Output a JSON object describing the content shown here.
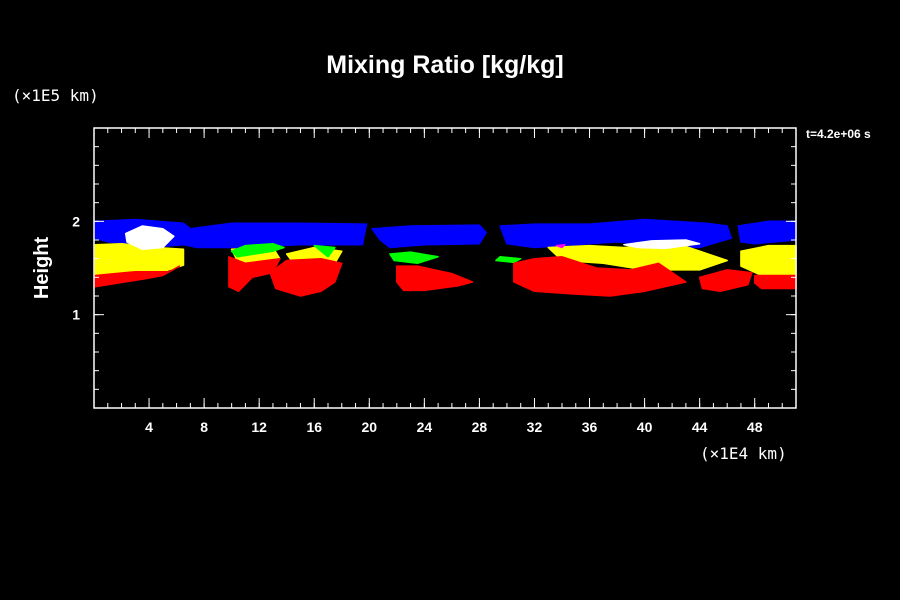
{
  "chart_data": {
    "type": "area",
    "title": "Mixing Ratio [kg/kg]",
    "ylabel": "Height",
    "xlabel": "",
    "x_unit": "(×1E4 km)",
    "y_unit": "(×1E5 km)",
    "time_label": "t=4.2e+06 s",
    "xlim": [
      0,
      51
    ],
    "ylim": [
      0,
      3
    ],
    "x_ticks": [
      4,
      8,
      12,
      16,
      20,
      24,
      28,
      32,
      36,
      40,
      44,
      48
    ],
    "y_ticks": [
      1,
      2
    ],
    "grid": false,
    "colors": {
      "background": "#000000",
      "axis": "#ffffff",
      "level_1": "#ff0000",
      "level_2": "#ffff00",
      "level_3": "#00ff00",
      "level_4": "#0000ff",
      "level_5": "#ffffff",
      "level_6": "#ff00ff"
    },
    "regions": [
      {
        "level": "level_4",
        "points": [
          [
            0.1,
            2.0
          ],
          [
            3.0,
            2.02
          ],
          [
            6.5,
            1.98
          ],
          [
            7.0,
            1.92
          ],
          [
            10.0,
            1.98
          ],
          [
            15.0,
            1.98
          ],
          [
            19.8,
            1.97
          ],
          [
            19.5,
            1.75
          ],
          [
            15.0,
            1.75
          ],
          [
            10.0,
            1.72
          ],
          [
            7.5,
            1.72
          ],
          [
            6.5,
            1.75
          ],
          [
            4.0,
            1.72
          ],
          [
            1.0,
            1.78
          ],
          [
            0.1,
            1.82
          ]
        ]
      },
      {
        "level": "level_4",
        "points": [
          [
            20.2,
            1.92
          ],
          [
            23.0,
            1.95
          ],
          [
            28.0,
            1.96
          ],
          [
            28.5,
            1.88
          ],
          [
            28.0,
            1.76
          ],
          [
            24.0,
            1.75
          ],
          [
            21.5,
            1.72
          ],
          [
            20.8,
            1.8
          ]
        ]
      },
      {
        "level": "level_4",
        "points": [
          [
            29.5,
            1.95
          ],
          [
            32.0,
            1.97
          ],
          [
            36.0,
            1.97
          ],
          [
            40.0,
            2.02
          ],
          [
            44.5,
            1.98
          ],
          [
            46.0,
            1.95
          ],
          [
            46.3,
            1.82
          ],
          [
            44.0,
            1.72
          ],
          [
            41.0,
            1.74
          ],
          [
            38.0,
            1.78
          ],
          [
            35.0,
            1.75
          ],
          [
            32.0,
            1.72
          ],
          [
            30.0,
            1.76
          ]
        ]
      },
      {
        "level": "level_4",
        "points": [
          [
            46.8,
            1.95
          ],
          [
            49.0,
            2.0
          ],
          [
            51.0,
            2.0
          ],
          [
            51.0,
            1.8
          ],
          [
            48.0,
            1.76
          ],
          [
            47.0,
            1.78
          ]
        ]
      },
      {
        "level": "level_2",
        "points": [
          [
            0.1,
            1.75
          ],
          [
            2.0,
            1.76
          ],
          [
            4.5,
            1.72
          ],
          [
            6.5,
            1.7
          ],
          [
            6.5,
            1.53
          ],
          [
            5.0,
            1.46
          ],
          [
            3.0,
            1.42
          ],
          [
            0.1,
            1.42
          ]
        ]
      },
      {
        "level": "level_2",
        "points": [
          [
            33.0,
            1.72
          ],
          [
            36.0,
            1.74
          ],
          [
            38.5,
            1.72
          ],
          [
            40.0,
            1.74
          ],
          [
            43.0,
            1.73
          ],
          [
            46.0,
            1.58
          ],
          [
            44.0,
            1.48
          ],
          [
            40.0,
            1.48
          ],
          [
            37.0,
            1.55
          ],
          [
            34.0,
            1.58
          ]
        ]
      },
      {
        "level": "level_2",
        "points": [
          [
            47.0,
            1.68
          ],
          [
            49.0,
            1.74
          ],
          [
            51.0,
            1.74
          ],
          [
            51.0,
            1.42
          ],
          [
            48.5,
            1.42
          ],
          [
            47.0,
            1.52
          ]
        ]
      },
      {
        "level": "level_2",
        "points": [
          [
            10.0,
            1.7
          ],
          [
            13.0,
            1.72
          ],
          [
            13.5,
            1.6
          ],
          [
            10.5,
            1.55
          ]
        ]
      },
      {
        "level": "level_2",
        "points": [
          [
            14.0,
            1.65
          ],
          [
            16.0,
            1.72
          ],
          [
            18.0,
            1.68
          ],
          [
            17.5,
            1.55
          ],
          [
            14.5,
            1.55
          ]
        ]
      },
      {
        "level": "level_3",
        "points": [
          [
            10.0,
            1.68
          ],
          [
            11.0,
            1.74
          ],
          [
            13.0,
            1.76
          ],
          [
            13.8,
            1.72
          ],
          [
            13.0,
            1.68
          ],
          [
            10.4,
            1.62
          ]
        ]
      },
      {
        "level": "level_3",
        "points": [
          [
            16.0,
            1.74
          ],
          [
            17.5,
            1.72
          ],
          [
            17.0,
            1.62
          ]
        ]
      },
      {
        "level": "level_3",
        "points": [
          [
            21.5,
            1.65
          ],
          [
            23.0,
            1.67
          ],
          [
            25.0,
            1.62
          ],
          [
            23.5,
            1.55
          ],
          [
            21.8,
            1.58
          ]
        ]
      },
      {
        "level": "level_3",
        "points": [
          [
            29.5,
            1.62
          ],
          [
            31.0,
            1.6
          ],
          [
            30.5,
            1.56
          ],
          [
            29.2,
            1.58
          ]
        ]
      },
      {
        "level": "level_1",
        "points": [
          [
            0.1,
            1.42
          ],
          [
            3.0,
            1.46
          ],
          [
            5.5,
            1.46
          ],
          [
            6.2,
            1.52
          ],
          [
            5.0,
            1.42
          ],
          [
            3.5,
            1.38
          ],
          [
            1.0,
            1.32
          ],
          [
            0.1,
            1.3
          ]
        ]
      },
      {
        "level": "level_1",
        "points": [
          [
            9.8,
            1.62
          ],
          [
            11.0,
            1.55
          ],
          [
            13.5,
            1.6
          ],
          [
            13.0,
            1.45
          ],
          [
            11.5,
            1.4
          ],
          [
            10.5,
            1.25
          ],
          [
            9.8,
            1.3
          ]
        ]
      },
      {
        "level": "level_1",
        "points": [
          [
            12.8,
            1.45
          ],
          [
            14.0,
            1.58
          ],
          [
            16.5,
            1.6
          ],
          [
            18.0,
            1.55
          ],
          [
            17.5,
            1.35
          ],
          [
            16.5,
            1.25
          ],
          [
            15.0,
            1.2
          ],
          [
            13.2,
            1.28
          ]
        ]
      },
      {
        "level": "level_1",
        "points": [
          [
            22.0,
            1.52
          ],
          [
            23.5,
            1.52
          ],
          [
            26.0,
            1.44
          ],
          [
            27.5,
            1.35
          ],
          [
            26.5,
            1.31
          ],
          [
            24.0,
            1.26
          ],
          [
            22.5,
            1.26
          ],
          [
            22.0,
            1.35
          ]
        ]
      },
      {
        "level": "level_1",
        "points": [
          [
            30.5,
            1.55
          ],
          [
            32.0,
            1.6
          ],
          [
            34.0,
            1.62
          ],
          [
            36.5,
            1.5
          ],
          [
            39.0,
            1.48
          ],
          [
            41.0,
            1.55
          ],
          [
            43.0,
            1.35
          ],
          [
            40.0,
            1.25
          ],
          [
            37.5,
            1.2
          ],
          [
            35.0,
            1.22
          ],
          [
            32.0,
            1.25
          ],
          [
            30.5,
            1.35
          ]
        ]
      },
      {
        "level": "level_1",
        "points": [
          [
            44.0,
            1.4
          ],
          [
            46.0,
            1.48
          ],
          [
            47.8,
            1.45
          ],
          [
            47.5,
            1.32
          ],
          [
            45.5,
            1.25
          ],
          [
            44.2,
            1.28
          ]
        ]
      },
      {
        "level": "level_1",
        "points": [
          [
            48.0,
            1.42
          ],
          [
            51.0,
            1.42
          ],
          [
            51.0,
            1.28
          ],
          [
            48.5,
            1.28
          ],
          [
            48.0,
            1.34
          ]
        ]
      },
      {
        "level": "level_5",
        "points": [
          [
            2.3,
            1.87
          ],
          [
            3.5,
            1.95
          ],
          [
            5.0,
            1.92
          ],
          [
            5.8,
            1.84
          ],
          [
            5.0,
            1.72
          ],
          [
            3.5,
            1.7
          ],
          [
            2.4,
            1.78
          ]
        ]
      },
      {
        "level": "level_5",
        "points": [
          [
            38.5,
            1.75
          ],
          [
            40.5,
            1.79
          ],
          [
            43.0,
            1.8
          ],
          [
            44.0,
            1.76
          ],
          [
            41.5,
            1.71
          ],
          [
            39.5,
            1.72
          ]
        ]
      },
      {
        "level": "level_6",
        "points": [
          [
            33.6,
            1.74
          ],
          [
            34.2,
            1.75
          ],
          [
            34.0,
            1.72
          ]
        ]
      }
    ]
  }
}
